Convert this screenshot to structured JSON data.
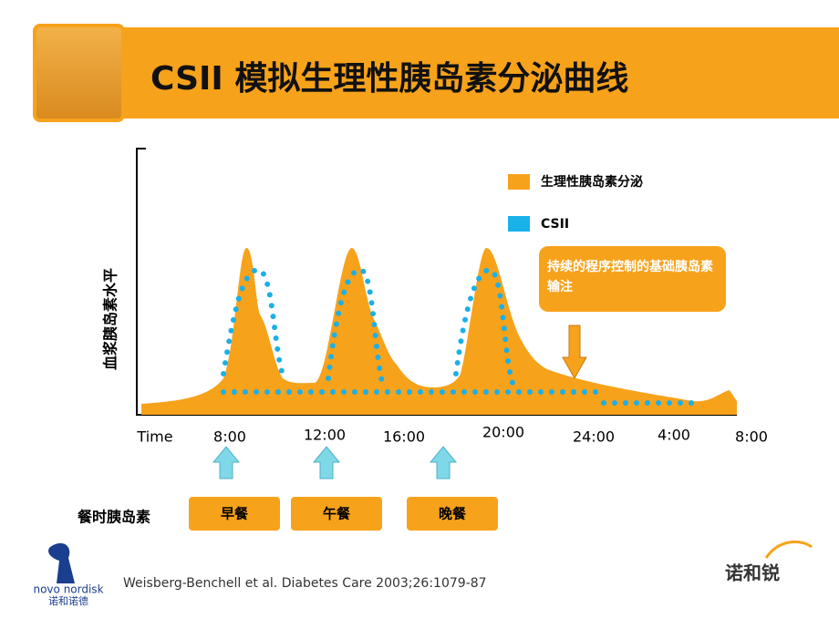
{
  "header": {
    "title": "CSII 模拟生理性胰岛素分泌曲线"
  },
  "legend": [
    {
      "label": "生理性胰岛素分泌",
      "color": "#f7a21b"
    },
    {
      "label": "CSII",
      "color": "#1ab0e8"
    }
  ],
  "y_axis_label": "血浆胰岛素水平",
  "x_axis": {
    "title": "Time",
    "ticks": [
      "8:00",
      "12:00",
      "16:00",
      "20:00",
      "24:00",
      "4:00",
      "8:00"
    ]
  },
  "callout": "持续的程序控制的基础胰岛素输注",
  "meal_label": "餐时胰岛素",
  "meals": [
    "早餐",
    "午餐",
    "晚餐"
  ],
  "citation": "Weisberg-Benchell et al. Diabetes Care 2003;26:1079-87",
  "logos": {
    "left": "novo nordisk",
    "left_sub": "诺和诺德",
    "right": "诺和锐"
  }
}
